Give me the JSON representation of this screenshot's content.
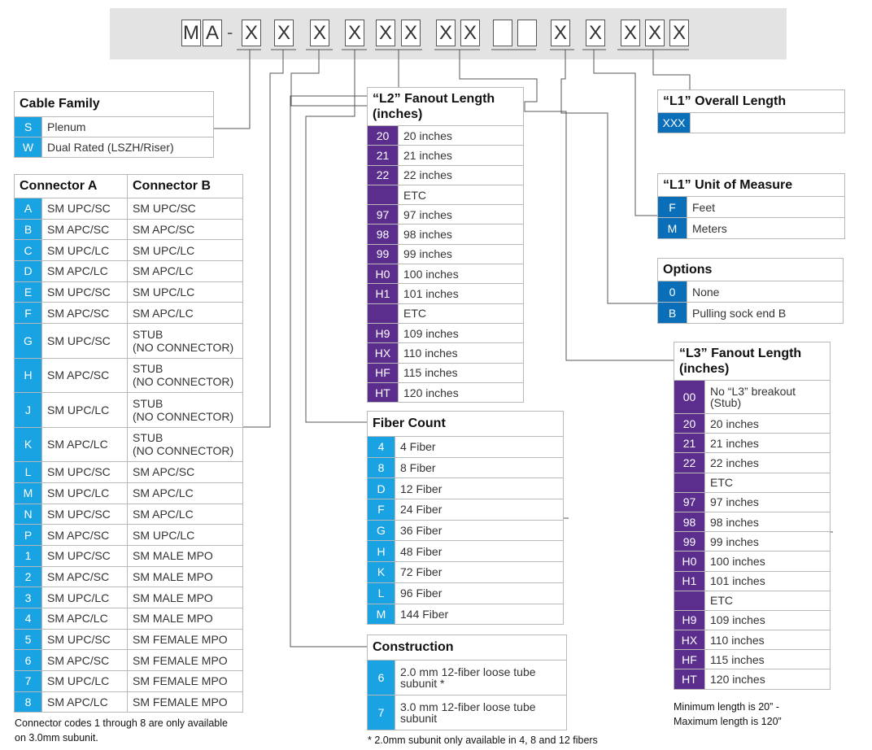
{
  "part_number": {
    "cells": [
      "M",
      "A",
      "X",
      "X",
      "X",
      "X",
      "X",
      "X",
      "X",
      "X",
      "",
      "",
      "X",
      "X",
      "X",
      "X",
      "X"
    ],
    "dash": "-"
  },
  "cable_family": {
    "title": "Cable Family",
    "rows": [
      {
        "code": "S",
        "label": "Plenum"
      },
      {
        "code": "W",
        "label": "Dual Rated (LSZH/Riser)"
      }
    ]
  },
  "connector": {
    "title_a": "Connector A",
    "title_b": "Connector B",
    "rows": [
      {
        "code": "A",
        "a": "SM UPC/SC",
        "b": "SM UPC/SC"
      },
      {
        "code": "B",
        "a": "SM APC/SC",
        "b": "SM APC/SC"
      },
      {
        "code": "C",
        "a": "SM UPC/LC",
        "b": "SM UPC/LC"
      },
      {
        "code": "D",
        "a": "SM APC/LC",
        "b": "SM APC/LC"
      },
      {
        "code": "E",
        "a": "SM UPC/SC",
        "b": "SM UPC/LC"
      },
      {
        "code": "F",
        "a": "SM APC/SC",
        "b": "SM APC/LC"
      },
      {
        "code": "G",
        "a": "SM UPC/SC",
        "b": "STUB",
        "b2": "(NO CONNECTOR)"
      },
      {
        "code": "H",
        "a": "SM APC/SC",
        "b": "STUB",
        "b2": "(NO CONNECTOR)"
      },
      {
        "code": "J",
        "a": "SM UPC/LC",
        "b": "STUB",
        "b2": "(NO CONNECTOR)"
      },
      {
        "code": "K",
        "a": "SM APC/LC",
        "b": "STUB",
        "b2": "(NO CONNECTOR)"
      },
      {
        "code": "L",
        "a": "SM UPC/SC",
        "b": "SM APC/SC"
      },
      {
        "code": "M",
        "a": "SM UPC/LC",
        "b": "SM APC/LC"
      },
      {
        "code": "N",
        "a": "SM UPC/SC",
        "b": "SM APC/LC"
      },
      {
        "code": "P",
        "a": "SM APC/SC",
        "b": "SM UPC/LC"
      },
      {
        "code": "1",
        "a": "SM UPC/SC",
        "b": "SM MALE MPO"
      },
      {
        "code": "2",
        "a": "SM APC/SC",
        "b": "SM MALE MPO"
      },
      {
        "code": "3",
        "a": "SM UPC/LC",
        "b": "SM MALE MPO"
      },
      {
        "code": "4",
        "a": "SM APC/LC",
        "b": "SM MALE MPO"
      },
      {
        "code": "5",
        "a": "SM UPC/SC",
        "b": "SM FEMALE MPO"
      },
      {
        "code": "6",
        "a": "SM APC/SC",
        "b": "SM FEMALE MPO"
      },
      {
        "code": "7",
        "a": "SM UPC/LC",
        "b": "SM FEMALE MPO"
      },
      {
        "code": "8",
        "a": "SM APC/LC",
        "b": "SM FEMALE MPO"
      }
    ],
    "note_1": "Connector codes 1 through 8 are only available",
    "note_2": "on 3.0mm subunit."
  },
  "l2": {
    "title_1": "“L2” Fanout Length",
    "title_2": "(inches)",
    "rows": [
      {
        "code": "20",
        "label": "20 inches"
      },
      {
        "code": "21",
        "label": "21 inches"
      },
      {
        "code": "22",
        "label": "22 inches"
      },
      {
        "code": "",
        "label": "ETC"
      },
      {
        "code": "97",
        "label": "97 inches"
      },
      {
        "code": "98",
        "label": "98 inches"
      },
      {
        "code": "99",
        "label": "99 inches"
      },
      {
        "code": "H0",
        "label": "100 inches"
      },
      {
        "code": "H1",
        "label": "101 inches"
      },
      {
        "code": "",
        "label": "ETC"
      },
      {
        "code": "H9",
        "label": "109 inches"
      },
      {
        "code": "HX",
        "label": "110 inches"
      },
      {
        "code": "HF",
        "label": "115 inches"
      },
      {
        "code": "HT",
        "label": "120 inches"
      }
    ]
  },
  "fiber_count": {
    "title": "Fiber Count",
    "rows": [
      {
        "code": "4",
        "label": "4 Fiber"
      },
      {
        "code": "8",
        "label": "8 Fiber"
      },
      {
        "code": "D",
        "label": "12 Fiber"
      },
      {
        "code": "F",
        "label": "24 Fiber"
      },
      {
        "code": "G",
        "label": "36 Fiber"
      },
      {
        "code": "H",
        "label": "48 Fiber"
      },
      {
        "code": "K",
        "label": "72 Fiber"
      },
      {
        "code": "L",
        "label": "96 Fiber"
      },
      {
        "code": "M",
        "label": "144 Fiber"
      }
    ]
  },
  "construction": {
    "title": "Construction",
    "rows": [
      {
        "code": "6",
        "l1": "2.0 mm 12-fiber loose tube",
        "l2": "subunit *"
      },
      {
        "code": "7",
        "l1": "3.0 mm 12-fiber loose tube",
        "l2": "subunit"
      }
    ],
    "note": "* 2.0mm subunit only available in 4, 8 and 12 fibers"
  },
  "l1_length": {
    "title": "“L1” Overall Length",
    "code": "XXX"
  },
  "l1_unit": {
    "title": "“L1” Unit of Measure",
    "rows": [
      {
        "code": "F",
        "label": "Feet"
      },
      {
        "code": "M",
        "label": "Meters"
      }
    ]
  },
  "options": {
    "title": "Options",
    "rows": [
      {
        "code": "0",
        "label": "None"
      },
      {
        "code": "B",
        "label": "Pulling sock end B"
      }
    ]
  },
  "l3": {
    "title_1": "“L3” Fanout Length",
    "title_2": "(inches)",
    "rows": [
      {
        "code": "00",
        "label": "No “L3” breakout",
        "label2": "(Stub)"
      },
      {
        "code": "20",
        "label": "20 inches"
      },
      {
        "code": "21",
        "label": "21 inches"
      },
      {
        "code": "22",
        "label": "22 inches"
      },
      {
        "code": "",
        "label": "ETC"
      },
      {
        "code": "97",
        "label": "97 inches"
      },
      {
        "code": "98",
        "label": "98 inches"
      },
      {
        "code": "99",
        "label": "99 inches"
      },
      {
        "code": "H0",
        "label": "100 inches"
      },
      {
        "code": "H1",
        "label": "101 inches"
      },
      {
        "code": "",
        "label": "ETC"
      },
      {
        "code": "H9",
        "label": "109 inches"
      },
      {
        "code": "HX",
        "label": "110 inches"
      },
      {
        "code": "HF",
        "label": "115 inches"
      },
      {
        "code": "HT",
        "label": "120 inches"
      }
    ],
    "note_1": "Minimum length is 20” -",
    "note_2": "Maximum length is 120”"
  }
}
